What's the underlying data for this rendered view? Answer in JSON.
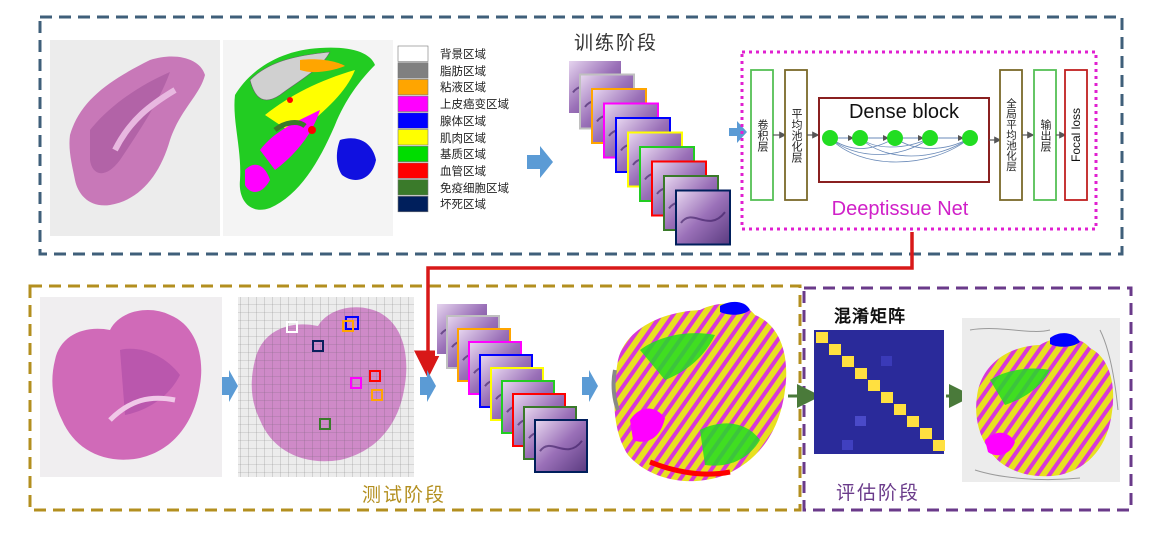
{
  "training": {
    "title": "训练阶段",
    "legend": [
      {
        "label": "背景区域",
        "color": "#ffffff"
      },
      {
        "label": "脂肪区域",
        "color": "#808080"
      },
      {
        "label": "粘液区域",
        "color": "#ffa500"
      },
      {
        "label": "上皮癌变区域",
        "color": "#ff00ff"
      },
      {
        "label": "腺体区域",
        "color": "#0000ff"
      },
      {
        "label": "肌肉区域",
        "color": "#ffff00"
      },
      {
        "label": "基质区域",
        "color": "#00dd00"
      },
      {
        "label": "血管区域",
        "color": "#ff0000"
      },
      {
        "label": "免疫细胞区域",
        "color": "#3a7a2a"
      },
      {
        "label": "坏死区域",
        "color": "#001f5c"
      }
    ]
  },
  "network": {
    "conv_label": "卷积层",
    "pool_label": "平均池化层",
    "dense_label": "Dense block",
    "gap_label": "全局平均池化层",
    "output_label": "输出层",
    "loss_label": "Focal loss",
    "name": "Deeptissue Net"
  },
  "testing": {
    "title": "测试阶段"
  },
  "evaluation": {
    "title": "评估阶段",
    "matrix_label": "混淆矩阵"
  },
  "colors": {
    "training_border": "#3f5f7a",
    "testing_border": "#b38f1f",
    "evaluation_border": "#6a3a8a",
    "network_border": "#e020d0",
    "flow_arrow": "#d81818",
    "step_arrow": "#5b9bd5",
    "network_name": "#d020c8"
  }
}
